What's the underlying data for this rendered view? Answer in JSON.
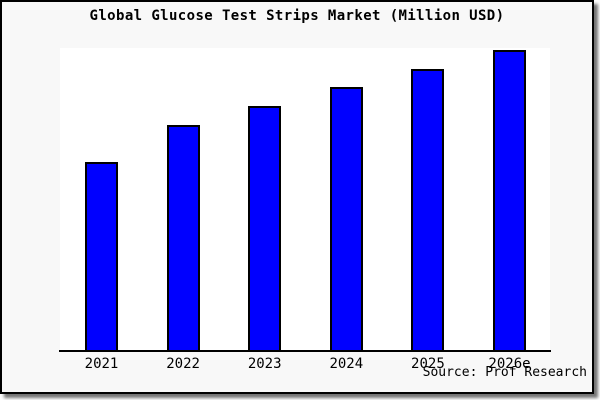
{
  "title": "Global Glucose Test Strips Market (Million USD)",
  "source_text": "Source: Prof Research",
  "colors": {
    "bar_fill": "#0000ff",
    "bar_border": "#000000",
    "canvas_bg": "#f8f8f8",
    "plot_bg": "#ffffff",
    "frame_border": "#000000",
    "axis": "#000000",
    "text": "#000000"
  },
  "chart_data": {
    "type": "bar",
    "title": "Global Glucose Test Strips Market (Million USD)",
    "categories": [
      "2021",
      "2022",
      "2023",
      "2024",
      "2025",
      "2026e"
    ],
    "values": [
      62.7,
      75.0,
      81.3,
      87.7,
      93.7,
      100.0
    ],
    "value_scale": "relative index, max bar = 100 (y-axis has no ticks or labels in source image)",
    "xlabel": "",
    "ylabel": "",
    "ylim": [
      0,
      100
    ],
    "grid": false,
    "legend": false,
    "y_axis_visible": false,
    "annotations": [
      "Source: Prof Research"
    ]
  }
}
